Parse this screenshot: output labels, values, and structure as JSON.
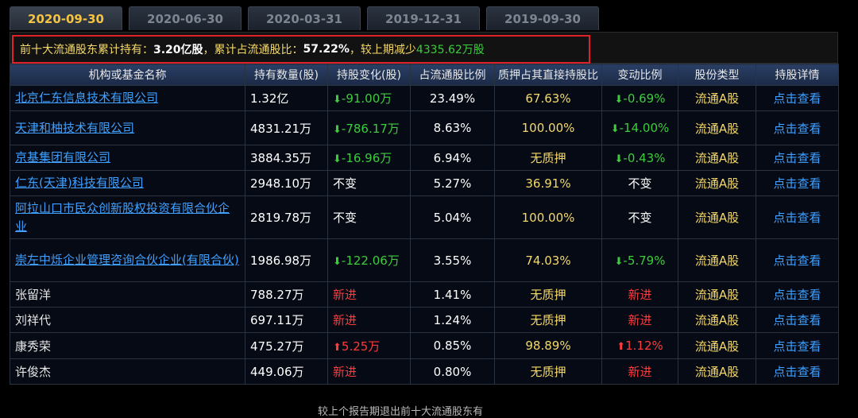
{
  "tabs": [
    "2020-09-30",
    "2020-06-30",
    "2020-03-31",
    "2019-12-31",
    "2019-09-30"
  ],
  "summary": {
    "part1": "前十大流通股东累计持有：",
    "holding": "3.20亿股",
    "part2": "，累计占流通股比：",
    "ratio": "57.22%",
    "part3": "，较上期减少",
    "change": "4335.62万股"
  },
  "columns": [
    "机构或基金名称",
    "持有数量(股)",
    "持股变化(股)",
    "占流通股比例",
    "质押占其直接持股比",
    "变动比例",
    "股份类型",
    "持股详情"
  ],
  "rows": [
    {
      "name": "北京仁东信息技术有限公司",
      "is_link": true,
      "qty": "1.32亿",
      "chg": "-91.00万",
      "chg_type": "down",
      "pct": "23.49%",
      "pledge": "67.63%",
      "var": "-0.69%",
      "var_type": "down",
      "type": "流通A股",
      "detail": "点击查看"
    },
    {
      "name": "天津和柚技术有限公司",
      "is_link": true,
      "qty": "4831.21万",
      "chg": "-786.17万",
      "chg_type": "down",
      "pct": "8.63%",
      "pledge": "100.00%",
      "var": "-14.00%",
      "var_type": "down",
      "type": "流通A股",
      "detail": "点击查看"
    },
    {
      "name": "京基集团有限公司",
      "is_link": true,
      "qty": "3884.35万",
      "chg": "-16.96万",
      "chg_type": "down",
      "pct": "6.94%",
      "pledge": "无质押",
      "var": "-0.43%",
      "var_type": "down",
      "type": "流通A股",
      "detail": "点击查看"
    },
    {
      "name": "仁东(天津)科技有限公司",
      "is_link": true,
      "qty": "2948.10万",
      "chg": "不变",
      "chg_type": "same",
      "pct": "5.27%",
      "pledge": "36.91%",
      "var": "不变",
      "var_type": "same",
      "type": "流通A股",
      "detail": "点击查看"
    },
    {
      "name": "阿拉山口市民众创新股权投资有限合伙企业",
      "is_link": true,
      "qty": "2819.78万",
      "chg": "不变",
      "chg_type": "same",
      "pct": "5.04%",
      "pledge": "100.00%",
      "var": "不变",
      "var_type": "same",
      "type": "流通A股",
      "detail": "点击查看"
    },
    {
      "name": "崇左中烁企业管理咨询合伙企业(有限合伙)",
      "is_link": true,
      "qty": "1986.98万",
      "chg": "-122.06万",
      "chg_type": "down",
      "pct": "3.55%",
      "pledge": "74.03%",
      "var": "-5.79%",
      "var_type": "down",
      "type": "流通A股",
      "detail": "点击查看"
    },
    {
      "name": "张留洋",
      "is_link": false,
      "qty": "788.27万",
      "chg": "新进",
      "chg_type": "new",
      "pct": "1.41%",
      "pledge": "无质押",
      "var": "新进",
      "var_type": "new",
      "type": "流通A股",
      "detail": "点击查看"
    },
    {
      "name": "刘祥代",
      "is_link": false,
      "qty": "697.11万",
      "chg": "新进",
      "chg_type": "new",
      "pct": "1.24%",
      "pledge": "无质押",
      "var": "新进",
      "var_type": "new",
      "type": "流通A股",
      "detail": "点击查看"
    },
    {
      "name": "康秀荣",
      "is_link": false,
      "qty": "475.27万",
      "chg": "5.25万",
      "chg_type": "up",
      "pct": "0.85%",
      "pledge": "98.89%",
      "var": "1.12%",
      "var_type": "up",
      "type": "流通A股",
      "detail": "点击查看"
    },
    {
      "name": "许俊杰",
      "is_link": false,
      "qty": "449.06万",
      "chg": "新进",
      "chg_type": "new",
      "pct": "0.80%",
      "pledge": "无质押",
      "var": "新进",
      "var_type": "new",
      "type": "流通A股",
      "detail": "点击查看"
    }
  ],
  "bottom_note": "较上个报告期退出前十大流通股东有",
  "icons": {
    "down": "arrow-down-icon",
    "up": "arrow-up-icon"
  },
  "colors": {
    "up": "#ff3b3b",
    "down": "#3dcc3d",
    "link": "#3fa0ff",
    "accent": "#f5c342",
    "highlight_border": "#e0202a"
  }
}
